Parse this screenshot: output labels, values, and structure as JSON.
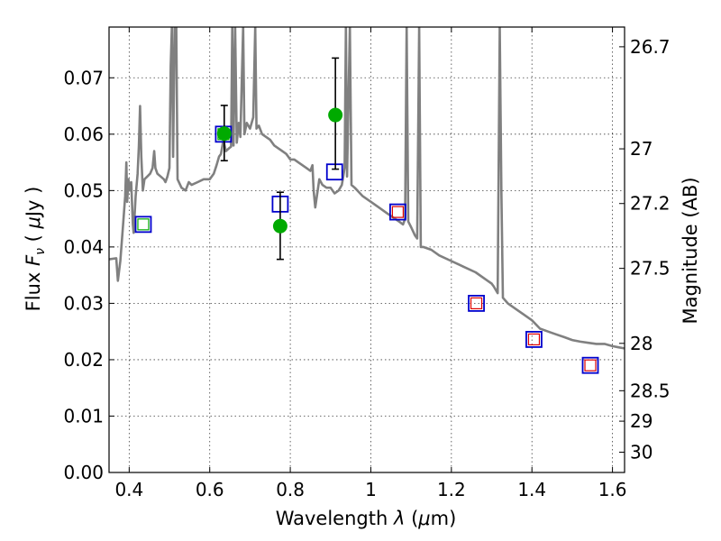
{
  "chart_data": {
    "type": "scatter",
    "xlabel": "Wavelength  λ (μm)",
    "ylabel": "Flux  F_ν  ( μJy )",
    "ylabel_right": "Magnitude (AB)",
    "xlim": [
      0.35,
      1.63
    ],
    "ylim": [
      0.0,
      0.079
    ],
    "grid": true,
    "legend": "none",
    "x_ticks": [
      {
        "value": 0.4,
        "label": "0.4"
      },
      {
        "value": 0.6,
        "label": "0.6"
      },
      {
        "value": 0.8,
        "label": "0.8"
      },
      {
        "value": 1.0,
        "label": "1"
      },
      {
        "value": 1.2,
        "label": "1.2"
      },
      {
        "value": 1.4,
        "label": "1.4"
      },
      {
        "value": 1.6,
        "label": "1.6"
      }
    ],
    "y_ticks": [
      {
        "value": 0.0,
        "label": "0.00"
      },
      {
        "value": 0.01,
        "label": "0.01"
      },
      {
        "value": 0.02,
        "label": "0.02"
      },
      {
        "value": 0.03,
        "label": "0.03"
      },
      {
        "value": 0.04,
        "label": "0.04"
      },
      {
        "value": 0.05,
        "label": "0.05"
      },
      {
        "value": 0.06,
        "label": "0.06"
      },
      {
        "value": 0.07,
        "label": "0.07"
      }
    ],
    "right_ticks": [
      {
        "label": "26.7",
        "flux": 0.0755
      },
      {
        "label": "27",
        "flux": 0.0574
      },
      {
        "label": "27.2",
        "flux": 0.0477
      },
      {
        "label": "27.5",
        "flux": 0.0362
      },
      {
        "label": "28",
        "flux": 0.0229
      },
      {
        "label": "28.5",
        "flux": 0.0145
      },
      {
        "label": "29",
        "flux": 0.0091
      },
      {
        "label": "30",
        "flux": 0.0036
      }
    ],
    "spectrum": {
      "color": "#808080",
      "points": [
        [
          0.35,
          0.0378
        ],
        [
          0.368,
          0.038
        ],
        [
          0.372,
          0.034
        ],
        [
          0.378,
          0.0375
        ],
        [
          0.385,
          0.044
        ],
        [
          0.39,
          0.049
        ],
        [
          0.393,
          0.055
        ],
        [
          0.395,
          0.048
        ],
        [
          0.398,
          0.052
        ],
        [
          0.402,
          0.05
        ],
        [
          0.405,
          0.0515
        ],
        [
          0.409,
          0.044
        ],
        [
          0.411,
          0.0425
        ],
        [
          0.416,
          0.049
        ],
        [
          0.421,
          0.053
        ],
        [
          0.424,
          0.058
        ],
        [
          0.427,
          0.065
        ],
        [
          0.43,
          0.056
        ],
        [
          0.434,
          0.05
        ],
        [
          0.438,
          0.052
        ],
        [
          0.445,
          0.0525
        ],
        [
          0.452,
          0.053
        ],
        [
          0.458,
          0.054
        ],
        [
          0.462,
          0.057
        ],
        [
          0.465,
          0.054
        ],
        [
          0.47,
          0.053
        ],
        [
          0.478,
          0.0525
        ],
        [
          0.486,
          0.052
        ],
        [
          0.49,
          0.0515
        ],
        [
          0.495,
          0.0525
        ],
        [
          0.5,
          0.054
        ],
        [
          0.503,
          0.072
        ],
        [
          0.506,
          0.079
        ],
        [
          0.509,
          0.056
        ],
        [
          0.513,
          0.079
        ],
        [
          0.517,
          0.079
        ],
        [
          0.52,
          0.052
        ],
        [
          0.53,
          0.0505
        ],
        [
          0.54,
          0.05
        ],
        [
          0.548,
          0.0515
        ],
        [
          0.555,
          0.051
        ],
        [
          0.57,
          0.0515
        ],
        [
          0.585,
          0.052
        ],
        [
          0.6,
          0.052
        ],
        [
          0.61,
          0.053
        ],
        [
          0.617,
          0.0545
        ],
        [
          0.623,
          0.056
        ],
        [
          0.628,
          0.0565
        ],
        [
          0.634,
          0.059
        ],
        [
          0.64,
          0.057
        ],
        [
          0.648,
          0.0575
        ],
        [
          0.653,
          0.0578
        ],
        [
          0.656,
          0.079
        ],
        [
          0.659,
          0.058
        ],
        [
          0.663,
          0.079
        ],
        [
          0.667,
          0.0585
        ],
        [
          0.672,
          0.062
        ],
        [
          0.676,
          0.0595
        ],
        [
          0.683,
          0.079
        ],
        [
          0.686,
          0.06
        ],
        [
          0.692,
          0.062
        ],
        [
          0.7,
          0.061
        ],
        [
          0.708,
          0.063
        ],
        [
          0.713,
          0.079
        ],
        [
          0.716,
          0.061
        ],
        [
          0.722,
          0.0615
        ],
        [
          0.73,
          0.06
        ],
        [
          0.74,
          0.0595
        ],
        [
          0.75,
          0.059
        ],
        [
          0.76,
          0.058
        ],
        [
          0.77,
          0.0575
        ],
        [
          0.78,
          0.057
        ],
        [
          0.79,
          0.0565
        ],
        [
          0.8,
          0.0555
        ],
        [
          0.81,
          0.0555
        ],
        [
          0.82,
          0.055
        ],
        [
          0.83,
          0.0545
        ],
        [
          0.84,
          0.054
        ],
        [
          0.85,
          0.0535
        ],
        [
          0.855,
          0.0545
        ],
        [
          0.858,
          0.05
        ],
        [
          0.862,
          0.047
        ],
        [
          0.866,
          0.049
        ],
        [
          0.872,
          0.052
        ],
        [
          0.88,
          0.051
        ],
        [
          0.89,
          0.0505
        ],
        [
          0.9,
          0.0505
        ],
        [
          0.91,
          0.0495
        ],
        [
          0.92,
          0.05
        ],
        [
          0.928,
          0.051
        ],
        [
          0.935,
          0.054
        ],
        [
          0.938,
          0.079
        ],
        [
          0.941,
          0.0525
        ],
        [
          0.948,
          0.079
        ],
        [
          0.952,
          0.051
        ],
        [
          0.96,
          0.0505
        ],
        [
          0.98,
          0.049
        ],
        [
          1.0,
          0.048
        ],
        [
          1.02,
          0.047
        ],
        [
          1.04,
          0.046
        ],
        [
          1.06,
          0.045
        ],
        [
          1.07,
          0.0445
        ],
        [
          1.08,
          0.044
        ],
        [
          1.085,
          0.045
        ],
        [
          1.089,
          0.079
        ],
        [
          1.093,
          0.0445
        ],
        [
          1.1,
          0.0435
        ],
        [
          1.11,
          0.042
        ],
        [
          1.115,
          0.0415
        ],
        [
          1.12,
          0.079
        ],
        [
          1.124,
          0.04
        ],
        [
          1.13,
          0.04
        ],
        [
          1.15,
          0.0395
        ],
        [
          1.17,
          0.0385
        ],
        [
          1.2,
          0.0375
        ],
        [
          1.23,
          0.0365
        ],
        [
          1.26,
          0.0355
        ],
        [
          1.29,
          0.034
        ],
        [
          1.3,
          0.0335
        ],
        [
          1.305,
          0.033
        ],
        [
          1.315,
          0.0318
        ],
        [
          1.32,
          0.079
        ],
        [
          1.324,
          0.05
        ],
        [
          1.328,
          0.031
        ],
        [
          1.34,
          0.03
        ],
        [
          1.36,
          0.029
        ],
        [
          1.38,
          0.028
        ],
        [
          1.4,
          0.027
        ],
        [
          1.42,
          0.0255
        ],
        [
          1.44,
          0.025
        ],
        [
          1.46,
          0.0245
        ],
        [
          1.48,
          0.024
        ],
        [
          1.5,
          0.0235
        ],
        [
          1.52,
          0.0232
        ],
        [
          1.54,
          0.023
        ],
        [
          1.56,
          0.0228
        ],
        [
          1.58,
          0.0228
        ],
        [
          1.6,
          0.0224
        ],
        [
          1.615,
          0.0222
        ],
        [
          1.63,
          0.022
        ]
      ]
    },
    "model_points": [
      {
        "x": 0.435,
        "y": 0.044,
        "outer_color": "#0000cc",
        "inner_color": "#00aa00"
      },
      {
        "x": 0.634,
        "y": 0.06,
        "outer_color": "#0000cc",
        "inner_color": "#00aa00"
      },
      {
        "x": 0.775,
        "y": 0.0476,
        "outer_color": "#0000cc",
        "inner_color": ""
      },
      {
        "x": 0.91,
        "y": 0.0533,
        "outer_color": "#0000cc",
        "inner_color": ""
      },
      {
        "x": 1.067,
        "y": 0.0462,
        "outer_color": "#0000cc",
        "inner_color": "#dd0000"
      },
      {
        "x": 1.262,
        "y": 0.03,
        "outer_color": "#0000cc",
        "inner_color": "#dd0000"
      },
      {
        "x": 1.405,
        "y": 0.0236,
        "outer_color": "#0000cc",
        "inner_color": "#dd0000"
      },
      {
        "x": 1.545,
        "y": 0.019,
        "outer_color": "#0000cc",
        "inner_color": "#dd0000"
      }
    ],
    "observed_points": [
      {
        "x": 0.636,
        "y": 0.0601,
        "ylow": 0.0553,
        "yhigh": 0.0651
      },
      {
        "x": 0.775,
        "y": 0.0437,
        "ylow": 0.0378,
        "yhigh": 0.0497
      },
      {
        "x": 0.912,
        "y": 0.0634,
        "ylow": 0.0538,
        "yhigh": 0.0735
      }
    ],
    "observed_color": "#00aa00"
  }
}
